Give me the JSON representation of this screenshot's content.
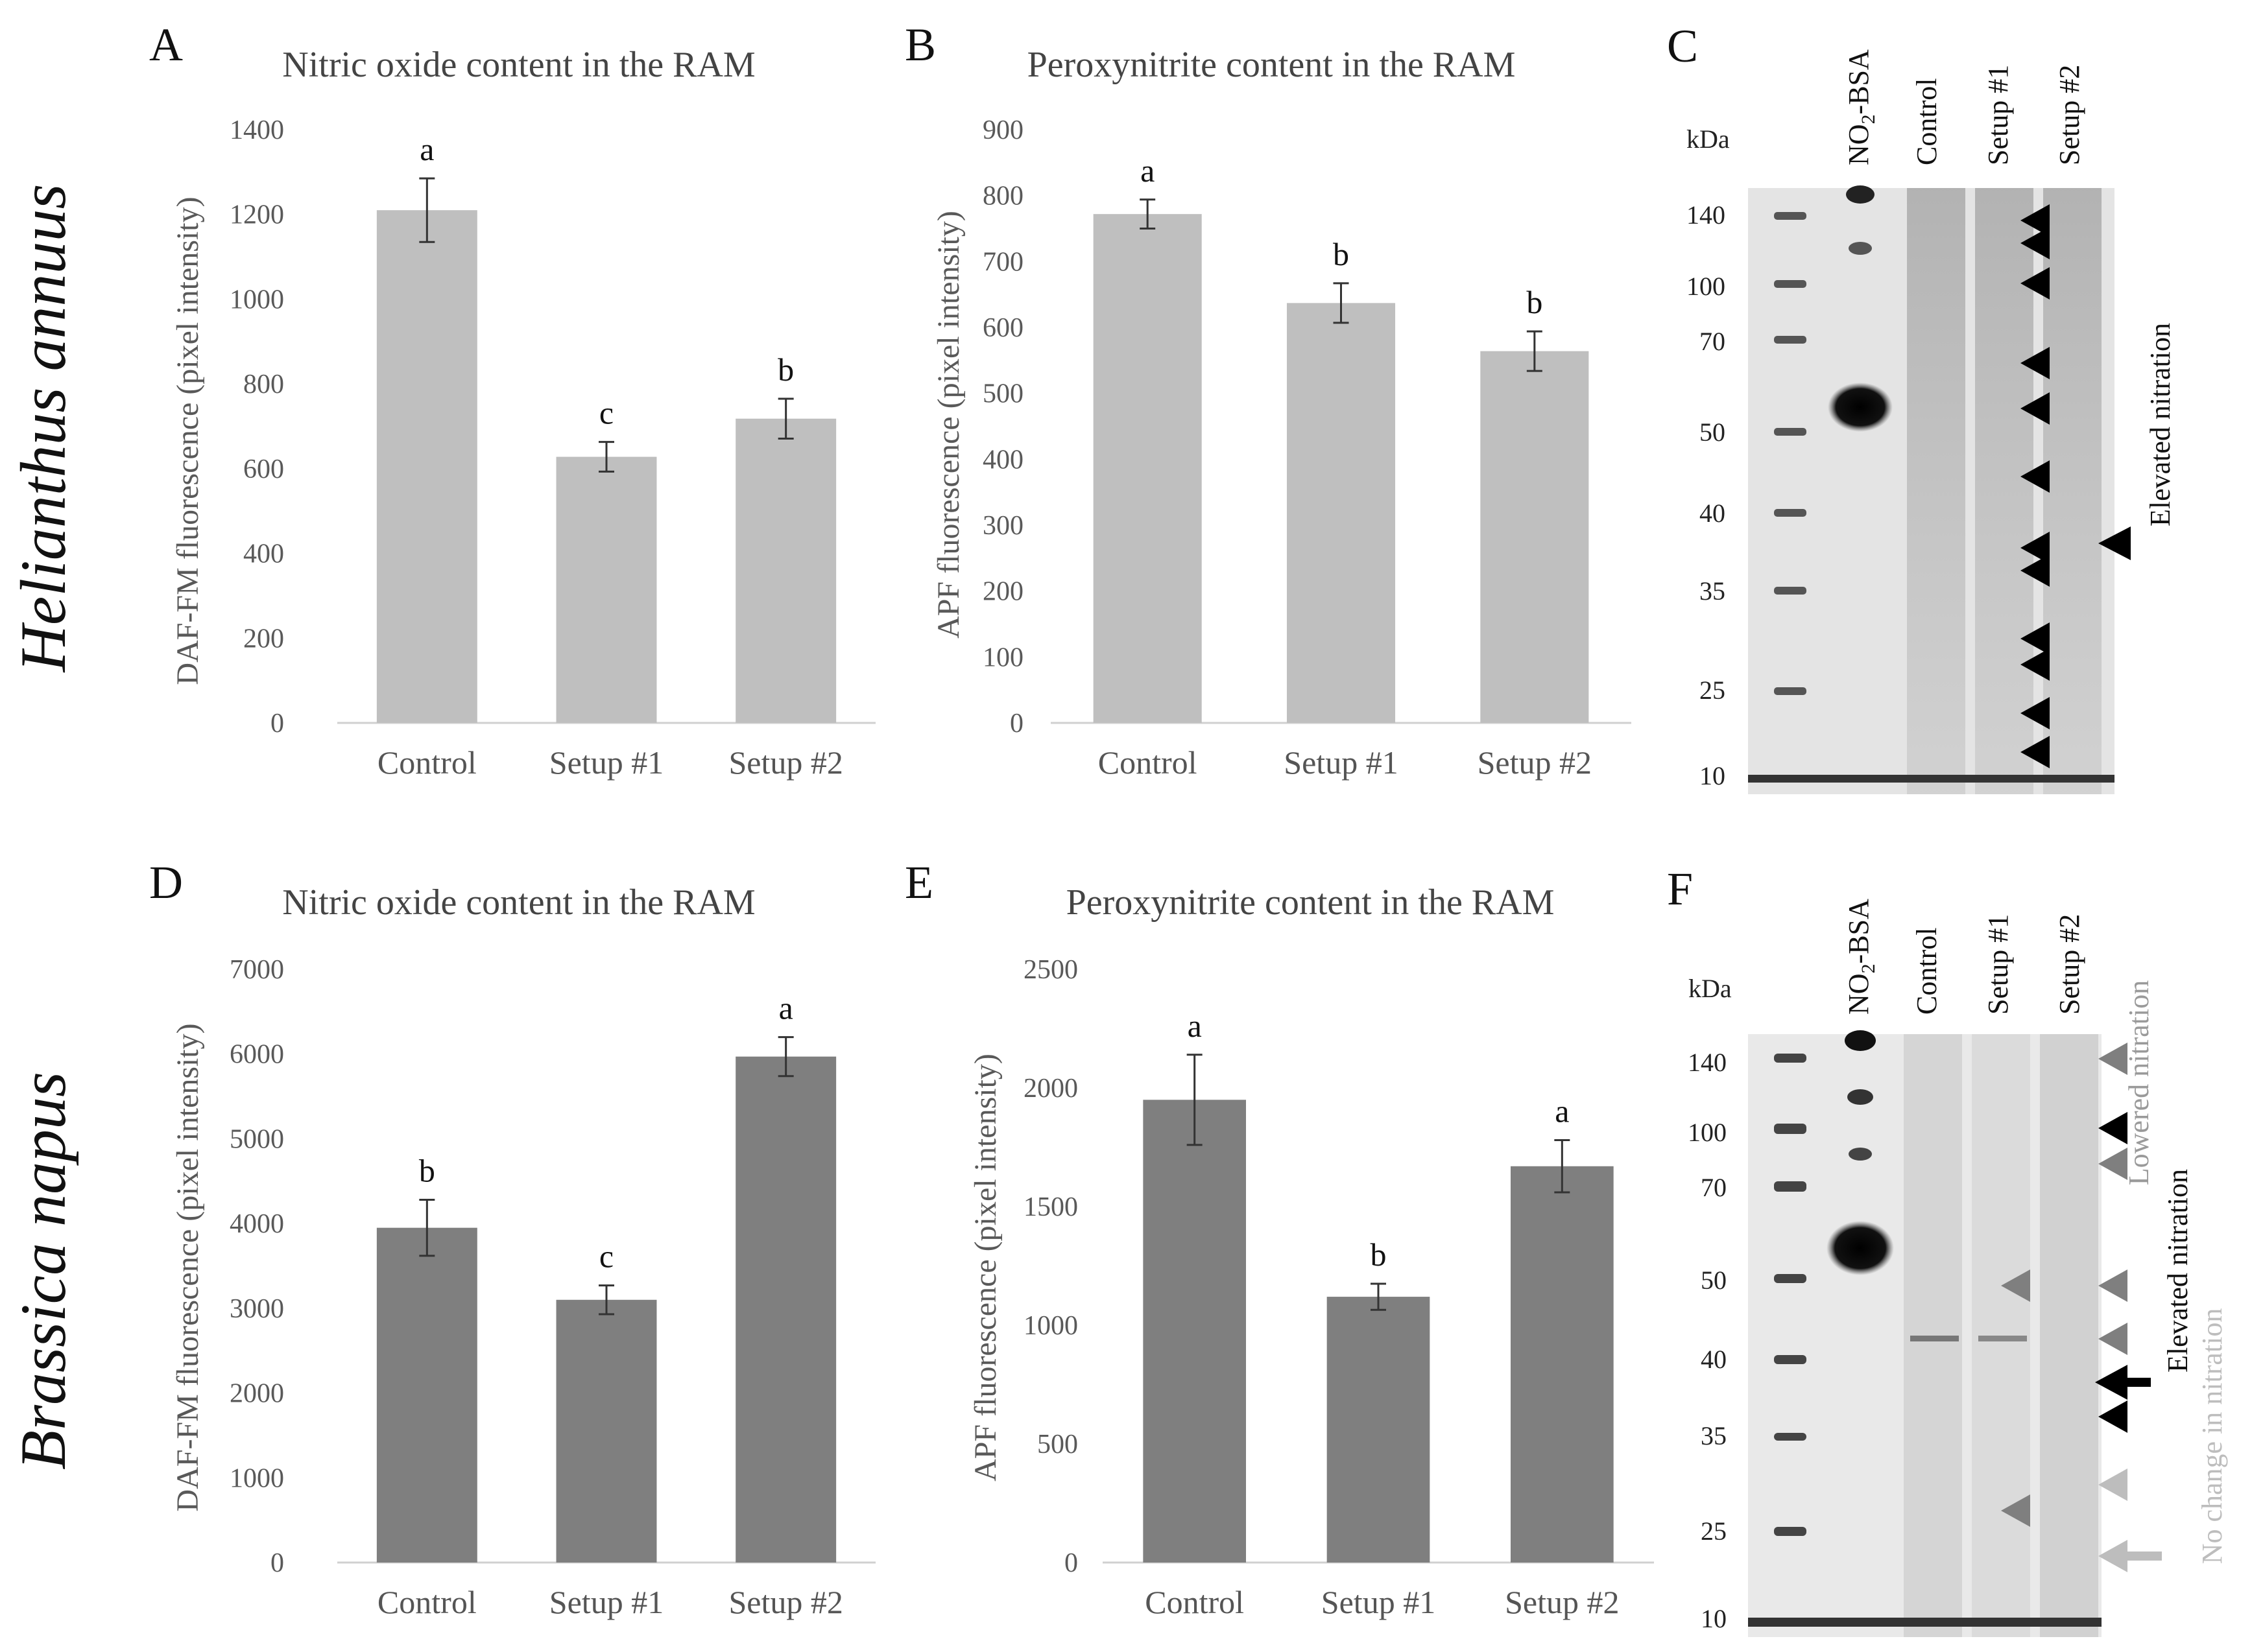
{
  "species": [
    "Helianthus annuus",
    "Brassica napus"
  ],
  "chart_data": [
    {
      "panel": "A",
      "type": "bar",
      "title": "Nitric oxide content in the RAM",
      "ylabel": "DAF-FM fluorescence (pixel intensity)",
      "xlabel": "",
      "categories": [
        "Control",
        "Setup #1",
        "Setup #2"
      ],
      "values": [
        1210,
        628,
        718
      ],
      "errors": [
        75,
        35,
        47
      ],
      "significance": [
        "a",
        "c",
        "b"
      ],
      "ylim": [
        0,
        1400
      ],
      "yticks": [
        0,
        200,
        400,
        600,
        800,
        1000,
        1200,
        1400
      ],
      "bar_color": "#bfbfbf"
    },
    {
      "panel": "B",
      "type": "bar",
      "title": "Peroxynitrite content in the RAM",
      "ylabel": "APF fluorescence (pixel intensity)",
      "xlabel": "",
      "categories": [
        "Control",
        "Setup #1",
        "Setup #2"
      ],
      "values": [
        772,
        637,
        564
      ],
      "errors": [
        22,
        30,
        30
      ],
      "significance": [
        "a",
        "b",
        "b"
      ],
      "ylim": [
        0,
        900
      ],
      "yticks": [
        0,
        100,
        200,
        300,
        400,
        500,
        600,
        700,
        800,
        900
      ],
      "bar_color": "#bfbfbf"
    },
    {
      "panel": "D",
      "type": "bar",
      "title": "Nitric oxide content in the RAM",
      "ylabel": "DAF-FM fluorescence (pixel intensity)",
      "xlabel": "",
      "categories": [
        "Control",
        "Setup #1",
        "Setup #2"
      ],
      "values": [
        3950,
        3100,
        5970
      ],
      "errors": [
        330,
        170,
        230
      ],
      "significance": [
        "b",
        "c",
        "a"
      ],
      "ylim": [
        0,
        7000
      ],
      "yticks": [
        0,
        1000,
        2000,
        3000,
        4000,
        5000,
        6000,
        7000
      ],
      "bar_color": "#7f7f7f"
    },
    {
      "panel": "E",
      "type": "bar",
      "title": "Peroxynitrite content in the RAM",
      "ylabel": "APF fluorescence (pixel intensity)",
      "xlabel": "",
      "categories": [
        "Control",
        "Setup #1",
        "Setup #2"
      ],
      "values": [
        1950,
        1120,
        1670
      ],
      "errors": [
        190,
        55,
        110
      ],
      "significance": [
        "a",
        "b",
        "a"
      ],
      "ylim": [
        0,
        2500
      ],
      "yticks": [
        0,
        500,
        1000,
        1500,
        2000,
        2500
      ],
      "bar_color": "#7f7f7f"
    }
  ],
  "blots": [
    {
      "panel": "C",
      "unit": "kDa",
      "lanes": [
        "NO2-BSA",
        "Control",
        "Setup #1",
        "Setup #2"
      ],
      "markers": [
        "140",
        "100",
        "70",
        "50",
        "40",
        "35",
        "25",
        "10"
      ],
      "annotations": [
        "Elevated nitration"
      ]
    },
    {
      "panel": "F",
      "unit": "kDa",
      "lanes": [
        "NO2-BSA",
        "Control",
        "Setup #1",
        "Setup #2"
      ],
      "markers": [
        "140",
        "100",
        "70",
        "50",
        "40",
        "35",
        "25",
        "10"
      ],
      "annotations": [
        "Lowered nitration",
        "Elevated nitration",
        "No change in nitration"
      ]
    }
  ]
}
